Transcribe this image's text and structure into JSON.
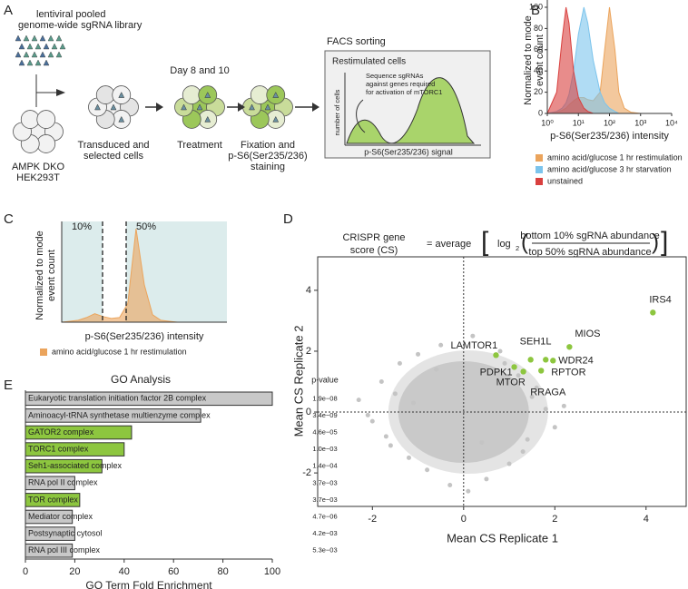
{
  "panel_labels": [
    "A",
    "B",
    "C",
    "D",
    "E"
  ],
  "schematic": {
    "library": [
      "lentiviral pooled",
      "genome-wide sgRNA library"
    ],
    "cells": [
      "AMPK DKO",
      "HEK293T"
    ],
    "step1": [
      "Transduced and",
      "selected cells"
    ],
    "day": "Day 8 and 10",
    "step2": "Treatment",
    "step3": [
      "Fixation and",
      "p-S6(Ser235/236)",
      "staining"
    ],
    "facs": "FACS sorting",
    "box_title": "Restimulated cells",
    "y_label": "number of cells",
    "note": [
      "Sequence sgRNAs",
      "against genes required",
      "for activation of mTORC1"
    ],
    "x_label": "p-S6(Ser235/236) signal"
  },
  "chart_data": [
    {
      "type": "area",
      "log_x": true,
      "x": [
        1,
        2,
        3,
        4,
        5,
        7,
        10,
        15,
        20,
        30,
        50,
        70,
        100,
        150,
        200,
        300,
        500,
        1000
      ],
      "series": [
        {
          "name": "amino acid/glucose 1 hr restimulation",
          "color": "#eba45c",
          "values": [
            0,
            1,
            3,
            5,
            8,
            12,
            15,
            15,
            13,
            12,
            20,
            60,
            100,
            60,
            20,
            5,
            1,
            0
          ]
        },
        {
          "name": "amino acid/glucose 3 hr starvation",
          "color": "#7cc4ec",
          "values": [
            0,
            2,
            5,
            10,
            18,
            40,
            75,
            100,
            85,
            50,
            20,
            10,
            5,
            2,
            0,
            0,
            0,
            0
          ]
        },
        {
          "name": "unstained",
          "color": "#d9403e",
          "values": [
            0,
            20,
            70,
            100,
            85,
            40,
            15,
            5,
            2,
            0,
            0,
            0,
            0,
            0,
            0,
            0,
            0,
            0
          ]
        }
      ],
      "xlim": [
        1,
        10000
      ],
      "xticks": [
        {
          "value": 1,
          "label": "10⁰"
        },
        {
          "value": 10,
          "label": "10¹"
        },
        {
          "value": 100,
          "label": "10²"
        },
        {
          "value": 1000,
          "label": "10³"
        },
        {
          "value": 10000,
          "label": "10⁴"
        }
      ],
      "ylim": [
        0,
        100
      ],
      "yticks": [
        0,
        20,
        40,
        60,
        80,
        100
      ],
      "y_label": [
        "Normalized to mode",
        "event count"
      ],
      "x_label": "p-S6(Ser235/236) intensity"
    },
    {
      "type": "area",
      "series": [
        {
          "name": "amino acid/glucose 1 hr restimulation",
          "color": "#eba45c",
          "values": [
            0,
            1,
            2,
            5,
            9,
            6,
            4,
            5,
            20,
            100,
            40,
            8,
            2,
            1,
            0,
            0,
            0,
            0,
            0,
            0,
            0
          ]
        }
      ],
      "ylim": [
        0,
        100
      ],
      "annotations": [
        "10%",
        "50%"
      ],
      "y_label": [
        "Normalized to mode",
        "event count"
      ],
      "x_label": "p-S6(Ser235/236) intensity"
    },
    {
      "type": "scatter",
      "title": {
        "left": [
          "CRISPR gene",
          "score (CS)"
        ],
        "eq": "= average",
        "log": "log",
        "sub": "2",
        "num": "bottom 10% sgRNA abundance",
        "den": "top 50% sgRNA abundance"
      },
      "series": [
        {
          "color": "#c4c4c4",
          "x": [
            -2.3,
            -2.0,
            -1.8,
            -1.6,
            -1.5,
            -1.4,
            -1.2,
            -1.0,
            -0.8,
            -0.5,
            -0.3,
            0.2,
            0.5,
            0.8,
            1.0,
            1.2,
            1.4,
            1.6,
            1.8,
            2.0,
            -1.7,
            -1.1,
            0.9,
            1.3,
            -0.6,
            0.4,
            1.5,
            -2.1,
            2.2,
            0.1
          ],
          "values": [
            0.4,
            -0.3,
            1.0,
            -1.1,
            0.6,
            1.6,
            -1.5,
            1.9,
            -1.9,
            2.2,
            -2.4,
            2.5,
            -2.2,
            2.0,
            -1.7,
            1.2,
            -0.9,
            0.8,
            0.1,
            -0.5,
            -0.8,
            0.3,
            1.6,
            -1.3,
            1.4,
            -1.0,
            0.5,
            -0.1,
            0.2,
            -2.6
          ]
        },
        {
          "color": "#8dc63f",
          "labels": [
            "LAMTOR1",
            "PDPK1",
            "MTOR",
            "SEH1L",
            "RRAGA",
            "RPTOR",
            "WDR24",
            "MIOS",
            "IRS4"
          ],
          "x": [
            0.71,
            1.11,
            1.31,
            1.47,
            1.7,
            1.8,
            1.96,
            2.32,
            4.15
          ],
          "values": [
            1.87,
            1.48,
            1.33,
            1.72,
            1.36,
            1.72,
            1.69,
            2.14,
            3.27
          ]
        }
      ],
      "xlim": [
        -3.2,
        4.9
      ],
      "xticks": [
        -2,
        0,
        2,
        4
      ],
      "ylim": [
        -3.1,
        5.1
      ],
      "yticks": [
        -2,
        0,
        2,
        4
      ],
      "x_label": "Mean CS Replicate 1",
      "y_label": "Mean CS Replicate 2"
    },
    {
      "type": "hbar",
      "title": "GO Analysis",
      "value_header": "p-value",
      "categories": [
        "Eukaryotic translation initiation factor 2B complex",
        "Aminoacyl-tRNA synthetase multienzyme complex",
        "GATOR2 complex",
        "TORC1 complex",
        "Seh1-associated complex",
        "RNA pol II complex",
        "TOR complex",
        "Mediator complex",
        "Postsynaptic cytosol",
        "RNA pol III complex"
      ],
      "values": [
        100,
        71,
        43,
        40,
        31,
        20,
        22,
        19,
        20,
        19
      ],
      "colors": [
        "#c8c8c8",
        "#c8c8c8",
        "#8dc63f",
        "#8dc63f",
        "#8dc63f",
        "#c8c8c8",
        "#8dc63f",
        "#c8c8c8",
        "#c8c8c8",
        "#c8c8c8"
      ],
      "p_values": [
        "1.9e−08",
        "3.4e−09",
        "4.6e−05",
        "1.0e−03",
        "1.4e−04",
        "3.7e−03",
        "3.7e−03",
        "4.7e−06",
        "4.2e−03",
        "5.3e−03"
      ],
      "xlim": [
        0,
        100
      ],
      "xticks": [
        0,
        20,
        40,
        60,
        80,
        100
      ],
      "x_label": "GO Term Fold Enrichment"
    }
  ]
}
